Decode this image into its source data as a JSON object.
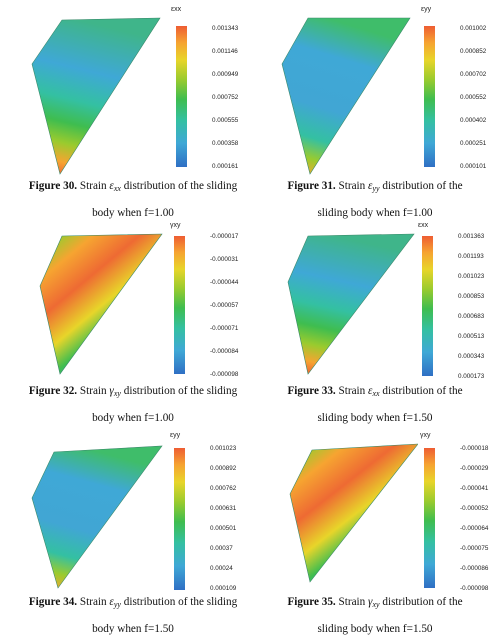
{
  "colormap": [
    "#2f6fc4",
    "#3fa8d6",
    "#34c0a2",
    "#3fbd4f",
    "#9acb2e",
    "#e8d52a",
    "#f6a431",
    "#ee5d33"
  ],
  "figures": [
    {
      "id": "fig30",
      "title": "εxx",
      "ticks": [
        "0.001343",
        "0.001146",
        "0.000949",
        "0.000752",
        "0.000555",
        "0.000358",
        "0.000161"
      ],
      "caption": {
        "label": "Figure 30.",
        "pre": "Strain",
        "sym": "ε",
        "sub": "xx",
        "line1": "distribution of the sliding",
        "line2": "body when f=1.00"
      }
    },
    {
      "id": "fig31",
      "title": "εyy",
      "ticks": [
        "0.001002",
        "0.000852",
        "0.000702",
        "0.000552",
        "0.000402",
        "0.000251",
        "0.000101"
      ],
      "caption": {
        "label": "Figure 31.",
        "pre": "Strain",
        "sym": "ε",
        "sub": "yy",
        "line1": "distribution of the",
        "line2": "sliding body when f=1.00"
      }
    },
    {
      "id": "fig32",
      "title": "γxy",
      "ticks": [
        "-0.000017",
        "-0.000031",
        "-0.000044",
        "-0.000057",
        "-0.000071",
        "-0.000084",
        "-0.000098"
      ],
      "caption": {
        "label": "Figure 32.",
        "pre": "Strain",
        "sym": "γ",
        "sub": "xy",
        "line1": "distribution of the sliding",
        "line2": "body when f=1.00"
      }
    },
    {
      "id": "fig33",
      "title": "εxx",
      "ticks": [
        "0.001363",
        "0.001193",
        "0.001023",
        "0.000853",
        "0.000683",
        "0.000513",
        "0.000343",
        "0.000173"
      ],
      "caption": {
        "label": "Figure 33.",
        "pre": "Strain",
        "sym": "ε",
        "sub": "xx",
        "line1": "distribution of the",
        "line2": "sliding body when f=1.50"
      }
    },
    {
      "id": "fig34",
      "title": "εyy",
      "ticks": [
        "0.001023",
        "0.000892",
        "0.000762",
        "0.000631",
        "0.000501",
        "0.00037",
        "0.00024",
        "0.000109"
      ],
      "caption": {
        "label": "Figure 34.",
        "pre": "Strain",
        "sym": "ε",
        "sub": "yy",
        "line1": "distribution of the sliding",
        "line2": "body when f=1.50"
      }
    },
    {
      "id": "fig35",
      "title": "γxy",
      "ticks": [
        "-0.000018",
        "-0.000029",
        "-0.000041",
        "-0.000052",
        "-0.000064",
        "-0.000075",
        "-0.000086",
        "-0.000098"
      ],
      "caption": {
        "label": "Figure 35.",
        "pre": "Strain",
        "sym": "γ",
        "sub": "xy",
        "line1": "distribution of the",
        "line2": "sliding body when f=1.50"
      }
    }
  ]
}
